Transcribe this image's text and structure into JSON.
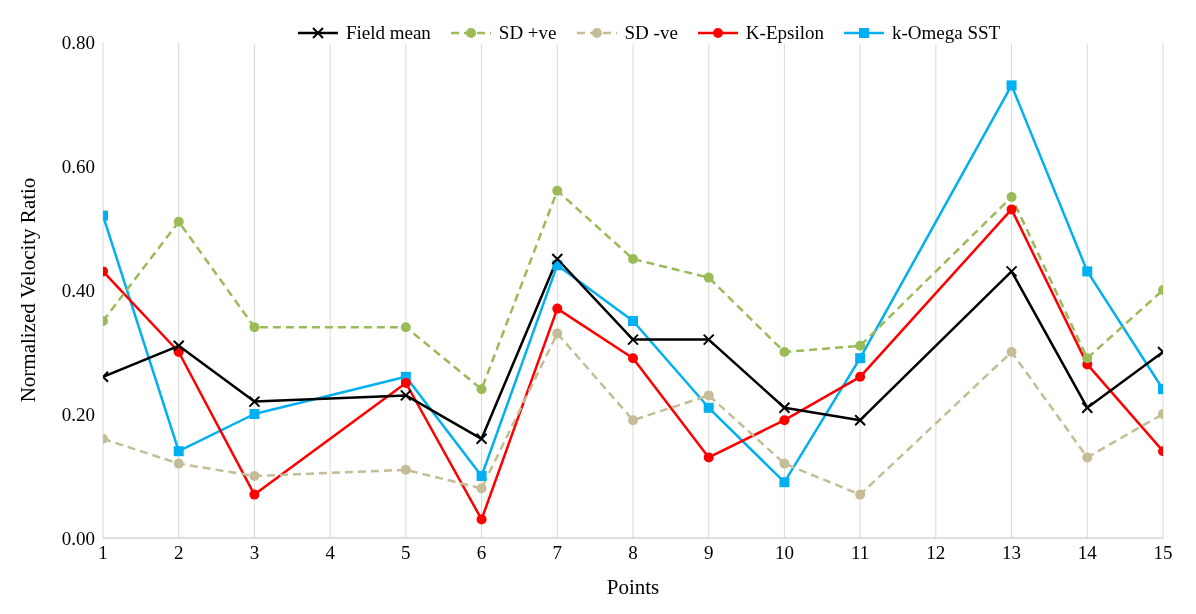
{
  "chart_data": {
    "type": "line",
    "xlabel": "Points",
    "ylabel": "Normalized Velocity Ratio",
    "x": [
      1,
      2,
      3,
      5,
      6,
      7,
      8,
      9,
      10,
      11,
      13,
      14,
      15
    ],
    "xlim": [
      1,
      15
    ],
    "xticks": [
      1,
      2,
      3,
      4,
      5,
      6,
      7,
      8,
      9,
      10,
      11,
      12,
      13,
      14,
      15
    ],
    "ylim": [
      0,
      0.8
    ],
    "yticks": [
      {
        "value": 0,
        "label": "0.00"
      },
      {
        "value": 0.2,
        "label": "0.20"
      },
      {
        "value": 0.4,
        "label": "0.40"
      },
      {
        "value": 0.6,
        "label": "0.60"
      },
      {
        "value": 0.8,
        "label": "0.80"
      }
    ],
    "grid": "x",
    "legend": "top",
    "series": [
      {
        "name": "Field mean",
        "color": "#000000",
        "marker": "cross",
        "line_style": "solid",
        "values": [
          0.26,
          0.31,
          0.22,
          0.23,
          0.16,
          0.45,
          0.32,
          0.32,
          0.21,
          0.19,
          0.43,
          0.21,
          0.3
        ]
      },
      {
        "name": "SD +ve",
        "color": "#9bbb59",
        "marker": "circle",
        "line_style": "dashed",
        "values": [
          0.35,
          0.51,
          0.34,
          0.34,
          0.24,
          0.56,
          0.45,
          0.42,
          0.3,
          0.31,
          0.55,
          0.29,
          0.4
        ]
      },
      {
        "name": "SD -ve",
        "color": "#c4bd97",
        "marker": "circle",
        "line_style": "dashed",
        "values": [
          0.16,
          0.12,
          0.1,
          0.11,
          0.08,
          0.33,
          0.19,
          0.23,
          0.12,
          0.07,
          0.3,
          0.13,
          0.2
        ]
      },
      {
        "name": "K-Epsilon",
        "color": "#ff0000",
        "marker": "circle",
        "line_style": "solid",
        "values": [
          0.43,
          0.3,
          0.07,
          0.25,
          0.03,
          0.37,
          0.29,
          0.13,
          0.19,
          0.26,
          0.53,
          0.28,
          0.14
        ]
      },
      {
        "name": "k-Omega SST",
        "color": "#00b0f0",
        "marker": "square",
        "line_style": "solid",
        "values": [
          0.52,
          0.14,
          0.2,
          0.26,
          0.1,
          0.44,
          0.35,
          0.21,
          0.09,
          0.29,
          0.73,
          0.43,
          0.24
        ]
      }
    ]
  }
}
